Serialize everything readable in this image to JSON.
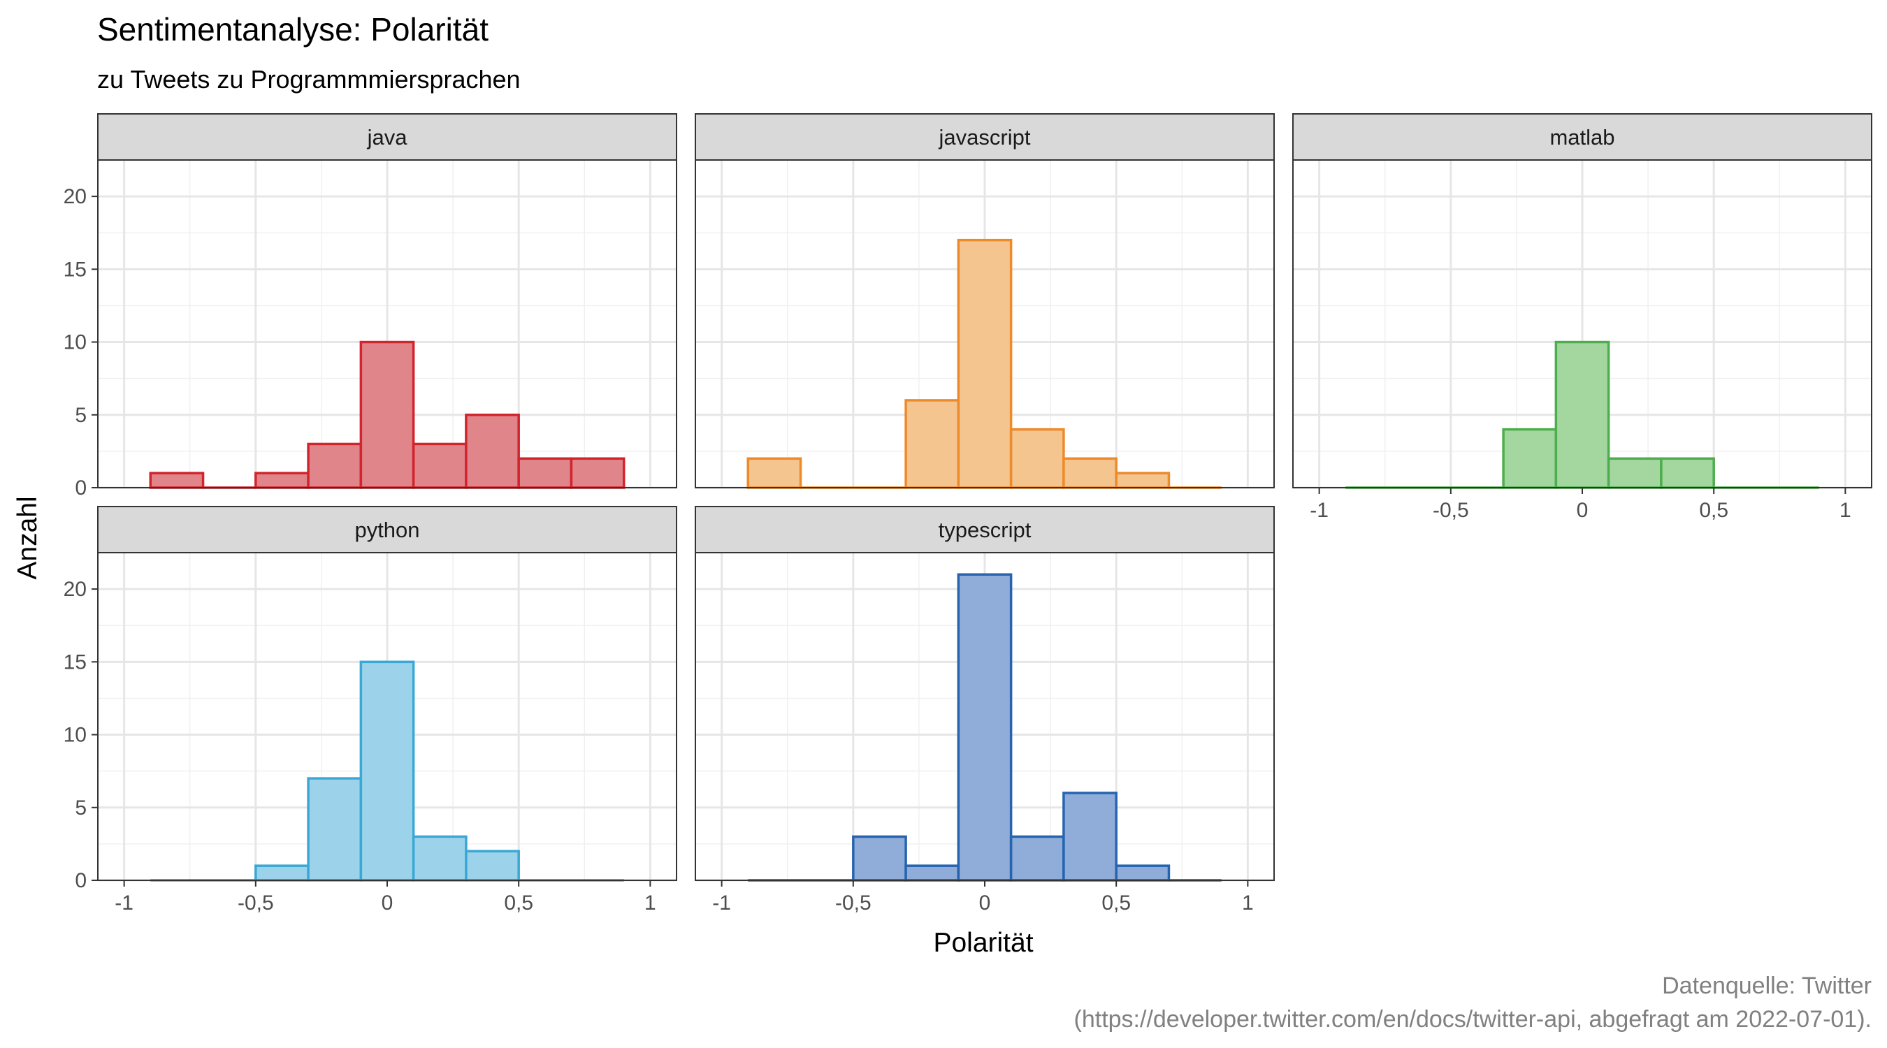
{
  "title": "Sentimentanalyse: Polarität",
  "subtitle": "zu Tweets zu Programmmiersprachen",
  "caption_line1": "Datenquelle: Twitter",
  "caption_line2": "(https://developer.twitter.com/en/docs/twitter-api, abgefragt am 2022-07-01).",
  "chart_data": {
    "type": "bar",
    "chart_kind": "faceted histogram",
    "xlabel": "Polarität",
    "ylabel": "Anzahl",
    "xlim": [
      -1.1,
      1.1
    ],
    "ylim": [
      0,
      22.5
    ],
    "x_ticks": [
      -1,
      -0.5,
      0,
      0.5,
      1
    ],
    "x_tick_labels": [
      "-1",
      "-0,5",
      "0",
      "0,5",
      "1"
    ],
    "y_ticks": [
      0,
      5,
      10,
      15,
      20
    ],
    "y_tick_labels": [
      "0",
      "5",
      "10",
      "15",
      "20"
    ],
    "bin_edges": [
      -0.9,
      -0.7,
      -0.5,
      -0.3,
      -0.1,
      0.1,
      0.3,
      0.5,
      0.7,
      0.9
    ],
    "grid": true,
    "legend": "none",
    "facets": [
      {
        "name": "java",
        "color": "#d1242c",
        "fill": "#e0868b",
        "counts": [
          1,
          0,
          1,
          3,
          10,
          3,
          5,
          2,
          2
        ]
      },
      {
        "name": "javascript",
        "color": "#ed8a2a",
        "fill": "#f4c58f",
        "counts": [
          2,
          0,
          0,
          6,
          17,
          4,
          2,
          1,
          0
        ]
      },
      {
        "name": "matlab",
        "color": "#4cae4c",
        "fill": "#a4d6a0",
        "counts": [
          0,
          0,
          0,
          4,
          10,
          2,
          2,
          0,
          0
        ]
      },
      {
        "name": "python",
        "color": "#3aa8d6",
        "fill": "#9dd3ea",
        "counts": [
          0,
          0,
          1,
          7,
          15,
          3,
          2,
          0,
          0
        ]
      },
      {
        "name": "typescript",
        "color": "#2664b0",
        "fill": "#8fadd8",
        "counts": [
          0,
          0,
          3,
          1,
          21,
          3,
          6,
          1,
          0
        ]
      }
    ]
  }
}
